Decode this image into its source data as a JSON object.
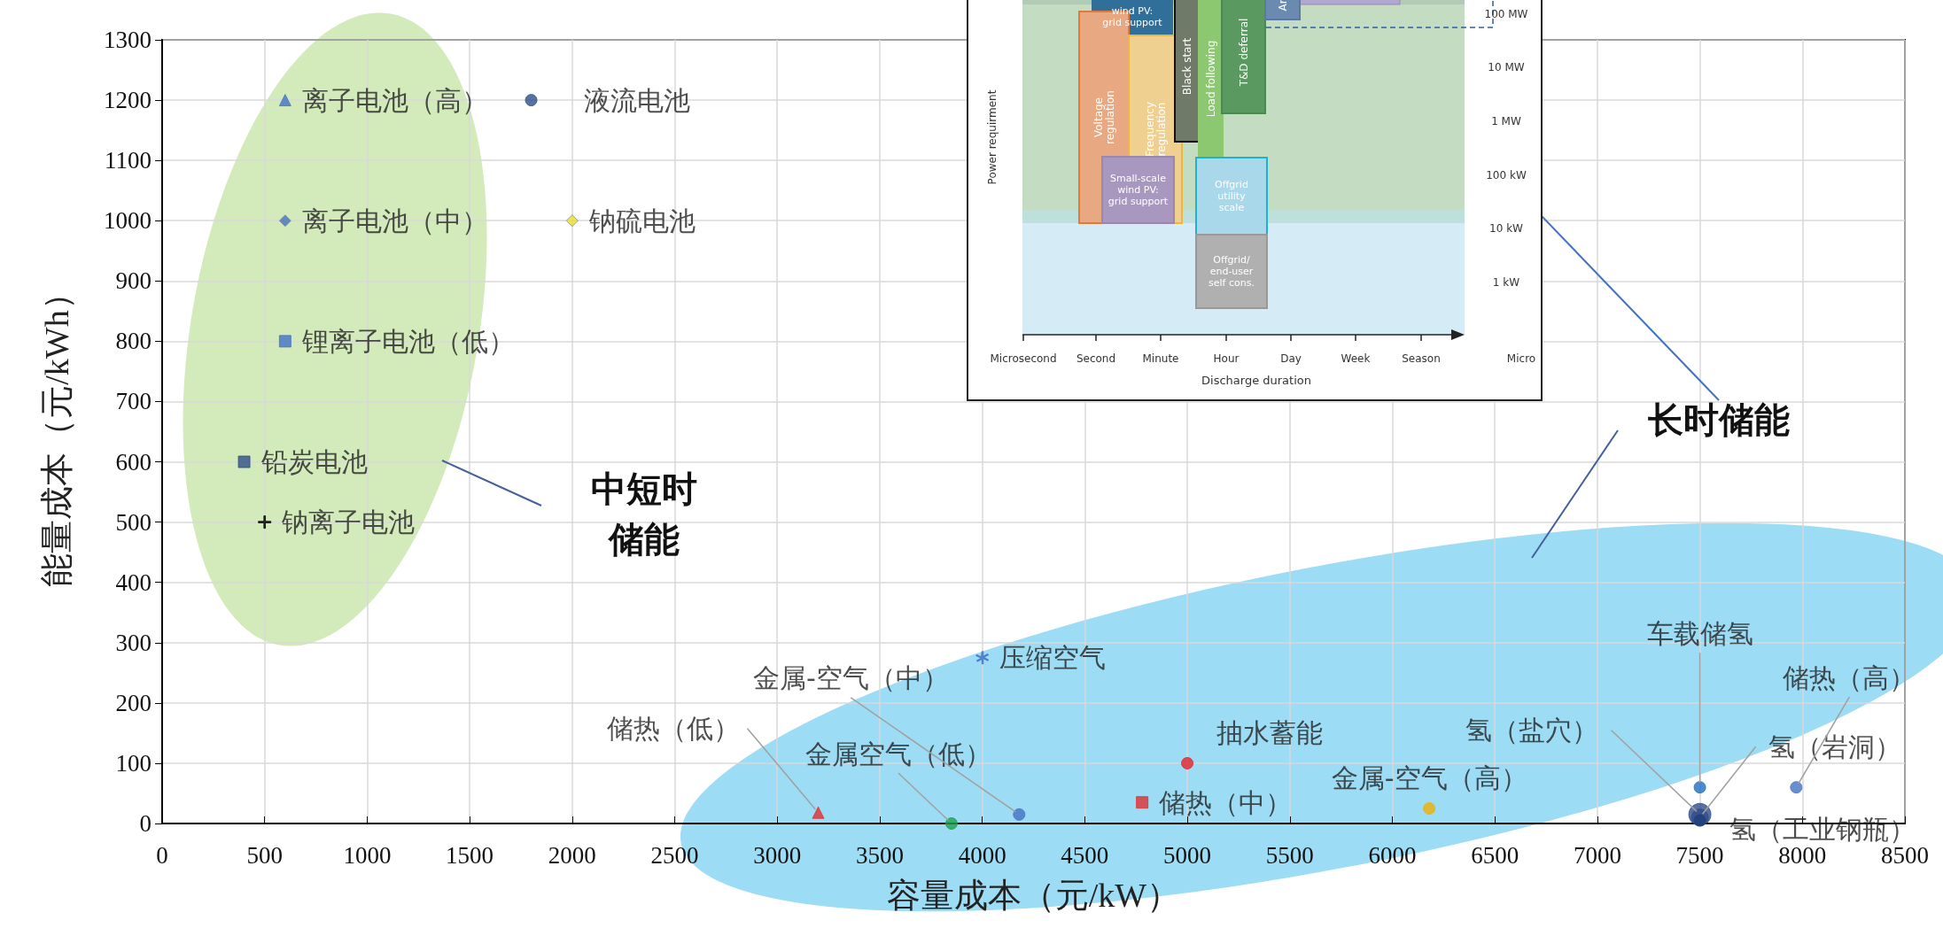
{
  "chart_data": [
    {
      "type": "scatter",
      "xlabel": "容量成本（元/kW）",
      "ylabel": "能量成本（元/kWh）",
      "xlim": [
        0,
        8500
      ],
      "ylim": [
        0,
        1300
      ],
      "xticks": [
        0,
        500,
        1000,
        1500,
        2000,
        2500,
        3000,
        3500,
        4000,
        4500,
        5000,
        5500,
        6000,
        6500,
        7000,
        7500,
        8000,
        8500
      ],
      "yticks": [
        0,
        100,
        200,
        300,
        400,
        500,
        600,
        700,
        800,
        900,
        1000,
        1100,
        1200,
        1300
      ],
      "grid": true,
      "annotations": [
        "中短时",
        "储能",
        "长时储能"
      ],
      "series": [
        {
          "name": "离子电池（高）",
          "color": "#4472c4",
          "marker": "triangle",
          "x": [
            600
          ],
          "values": [
            1200
          ]
        },
        {
          "name": "液流电池",
          "color": "#2f4e8a",
          "marker": "circle",
          "x": [
            1800
          ],
          "values": [
            1200
          ]
        },
        {
          "name": "离子电池（中）",
          "color": "#4472c4",
          "marker": "diamond",
          "x": [
            600
          ],
          "values": [
            1000
          ]
        },
        {
          "name": "钠硫电池",
          "color": "#e8e030",
          "marker": "diamond",
          "x": [
            2000
          ],
          "values": [
            1000
          ]
        },
        {
          "name": "锂离子电池（低）",
          "color": "#4472c4",
          "marker": "square",
          "x": [
            600
          ],
          "values": [
            800
          ]
        },
        {
          "name": "铅炭电池",
          "color": "#2f4e8a",
          "marker": "square",
          "x": [
            400
          ],
          "values": [
            600
          ]
        },
        {
          "name": "钠离子电池",
          "color": "#000000",
          "marker": "cross",
          "x": [
            500
          ],
          "values": [
            500
          ]
        },
        {
          "name": "压缩空气",
          "color": "#4472c4",
          "marker": "star",
          "x": [
            4000
          ],
          "values": [
            275
          ]
        },
        {
          "name": "储热（低）",
          "color": "#e03030",
          "marker": "triangle",
          "x": [
            3200
          ],
          "values": [
            18
          ]
        },
        {
          "name": "金属空气（低）",
          "color": "#20a050",
          "marker": "circle",
          "x": [
            3850
          ],
          "values": [
            0
          ]
        },
        {
          "name": "金属-空气（中）",
          "color": "#4472c4",
          "marker": "circle",
          "x": [
            4180
          ],
          "values": [
            15
          ]
        },
        {
          "name": "储热（中）",
          "color": "#e03030",
          "marker": "square",
          "x": [
            4780
          ],
          "values": [
            35
          ]
        },
        {
          "name": "抽水蓄能",
          "color": "#e8202a",
          "marker": "circle",
          "x": [
            5000
          ],
          "values": [
            100
          ]
        },
        {
          "name": "金属-空气（高）",
          "color": "#f0b000",
          "marker": "circle",
          "x": [
            6180
          ],
          "values": [
            25
          ]
        },
        {
          "name": "车载储氢",
          "color": "#1f6fc0",
          "marker": "circle",
          "x": [
            7500
          ],
          "values": [
            60
          ]
        },
        {
          "name": "氢（盐穴）",
          "color": "#2f4e8a",
          "marker": "circle",
          "x": [
            7500
          ],
          "values": [
            15
          ]
        },
        {
          "name": "氢（岩洞）",
          "color": "#2f4e8a",
          "marker": "circle",
          "x": [
            7500
          ],
          "values": [
            10
          ]
        },
        {
          "name": "氢（工业钢瓶）",
          "color": "#1f3f7a",
          "marker": "circle",
          "x": [
            7500
          ],
          "values": [
            5
          ]
        },
        {
          "name": "储热（高）",
          "color": "#4472c4",
          "marker": "circle",
          "x": [
            7970
          ],
          "values": [
            60
          ]
        }
      ]
    },
    {
      "type": "other",
      "xlabel": "Discharge duration",
      "ylabel": "Power requirment",
      "categories": [
        "Microsecond",
        "Second",
        "Minute",
        "Hour",
        "Day",
        "Week",
        "Season"
      ],
      "y_categories": [
        "100 MW",
        "10 MW",
        "1 MW",
        "100 kW",
        "10 kW",
        "1 kW"
      ],
      "annotations": [
        "wind PV:\ngrid support",
        "Voltage\nregulation",
        "Frequency\nregulation",
        "Black start",
        "Load following",
        "T&D deferral",
        "Ar",
        "Small-scale\nwind PV:\ngrid support",
        "Offgrid\nutility\nscale",
        "Offgrid/\nend-user\nself cons.",
        "Micro"
      ]
    }
  ]
}
